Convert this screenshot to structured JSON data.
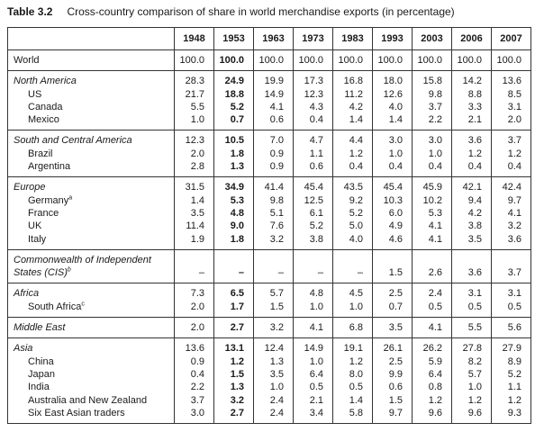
{
  "header": {
    "number": "Table 3.2",
    "title": "Cross-country comparison of share in world merchandise exports (in percentage)"
  },
  "table": {
    "columns": [
      "1948",
      "1953",
      "1963",
      "1973",
      "1983",
      "1993",
      "2003",
      "2006",
      "2007"
    ],
    "sections": [
      {
        "rows": [
          {
            "label": "World",
            "values": [
              "100.0",
              "100.0",
              "100.0",
              "100.0",
              "100.0",
              "100.0",
              "100.0",
              "100.0",
              "100.0"
            ]
          }
        ]
      },
      {
        "rows": [
          {
            "label": "North America",
            "values": [
              "28.3",
              "24.9",
              "19.9",
              "17.3",
              "16.8",
              "18.0",
              "15.8",
              "14.2",
              "13.6"
            ]
          },
          {
            "label": "US",
            "values": [
              "21.7",
              "18.8",
              "14.9",
              "12.3",
              "11.2",
              "12.6",
              "9.8",
              "8.8",
              "8.5"
            ]
          },
          {
            "label": "Canada",
            "values": [
              "5.5",
              "5.2",
              "4.1",
              "4.3",
              "4.2",
              "4.0",
              "3.7",
              "3.3",
              "3.1"
            ]
          },
          {
            "label": "Mexico",
            "values": [
              "1.0",
              "0.7",
              "0.6",
              "0.4",
              "1.4",
              "1.4",
              "2.2",
              "2.1",
              "2.0"
            ]
          }
        ]
      },
      {
        "rows": [
          {
            "label": "South and Central America",
            "values": [
              "12.3",
              "10.5",
              "7.0",
              "4.7",
              "4.4",
              "3.0",
              "3.0",
              "3.6",
              "3.7"
            ]
          },
          {
            "label": "Brazil",
            "values": [
              "2.0",
              "1.8",
              "0.9",
              "1.1",
              "1.2",
              "1.0",
              "1.0",
              "1.2",
              "1.2"
            ]
          },
          {
            "label": "Argentina",
            "values": [
              "2.8",
              "1.3",
              "0.9",
              "0.6",
              "0.4",
              "0.4",
              "0.4",
              "0.4",
              "0.4"
            ]
          }
        ]
      },
      {
        "rows": [
          {
            "label": "Europe",
            "values": [
              "31.5",
              "34.9",
              "41.4",
              "45.4",
              "43.5",
              "45.4",
              "45.9",
              "42.1",
              "42.4"
            ]
          },
          {
            "label": "Germany",
            "sup": "a",
            "values": [
              "1.4",
              "5.3",
              "9.8",
              "12.5",
              "9.2",
              "10.3",
              "10.2",
              "9.4",
              "9.7"
            ]
          },
          {
            "label": "France",
            "values": [
              "3.5",
              "4.8",
              "5.1",
              "6.1",
              "5.2",
              "6.0",
              "5.3",
              "4.2",
              "4.1"
            ]
          },
          {
            "label": "UK",
            "values": [
              "11.4",
              "9.0",
              "7.6",
              "5.2",
              "5.0",
              "4.9",
              "4.1",
              "3.8",
              "3.2"
            ]
          },
          {
            "label": "Italy",
            "values": [
              "1.9",
              "1.8",
              "3.2",
              "3.8",
              "4.0",
              "4.6",
              "4.1",
              "3.5",
              "3.6"
            ]
          }
        ]
      },
      {
        "rows": [
          {
            "label": "Commonwealth of Independent States (CIS)",
            "sup": "b",
            "values": [
              "–",
              "–",
              "–",
              "–",
              "–",
              "1.5",
              "2.6",
              "3.6",
              "3.7"
            ]
          }
        ]
      },
      {
        "rows": [
          {
            "label": "Africa",
            "values": [
              "7.3",
              "6.5",
              "5.7",
              "4.8",
              "4.5",
              "2.5",
              "2.4",
              "3.1",
              "3.1"
            ]
          },
          {
            "label": "South Africa",
            "sup": "c",
            "values": [
              "2.0",
              "1.7",
              "1.5",
              "1.0",
              "1.0",
              "0.7",
              "0.5",
              "0.5",
              "0.5"
            ]
          }
        ]
      },
      {
        "rows": [
          {
            "label": "Middle East",
            "values": [
              "2.0",
              "2.7",
              "3.2",
              "4.1",
              "6.8",
              "3.5",
              "4.1",
              "5.5",
              "5.6"
            ]
          }
        ]
      },
      {
        "rows": [
          {
            "label": "Asia",
            "values": [
              "13.6",
              "13.1",
              "12.4",
              "14.9",
              "19.1",
              "26.1",
              "26.2",
              "27.8",
              "27.9"
            ]
          },
          {
            "label": "China",
            "values": [
              "0.9",
              "1.2",
              "1.3",
              "1.0",
              "1.2",
              "2.5",
              "5.9",
              "8.2",
              "8.9"
            ]
          },
          {
            "label": "Japan",
            "values": [
              "0.4",
              "1.5",
              "3.5",
              "6.4",
              "8.0",
              "9.9",
              "6.4",
              "5.7",
              "5.2"
            ]
          },
          {
            "label": "India",
            "values": [
              "2.2",
              "1.3",
              "1.0",
              "0.5",
              "0.5",
              "0.6",
              "0.8",
              "1.0",
              "1.1"
            ]
          },
          {
            "label": "Australia and New Zealand",
            "values": [
              "3.7",
              "3.2",
              "2.4",
              "2.1",
              "1.4",
              "1.5",
              "1.2",
              "1.2",
              "1.2"
            ]
          },
          {
            "label": "Six East Asian traders",
            "values": [
              "3.0",
              "2.7",
              "2.4",
              "3.4",
              "5.8",
              "9.7",
              "9.6",
              "9.6",
              "9.3"
            ]
          }
        ]
      }
    ]
  }
}
